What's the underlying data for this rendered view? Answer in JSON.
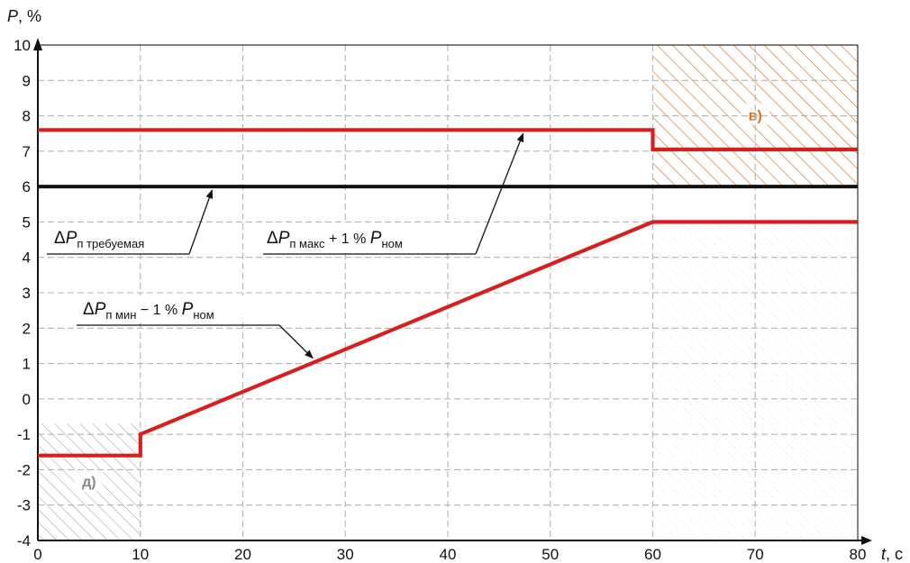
{
  "chart_data": {
    "type": "line",
    "title": "",
    "xlabel": "t, с",
    "ylabel": "P, %",
    "x_axis": {
      "min": 0,
      "max": 80,
      "ticks": [
        0,
        10,
        20,
        30,
        40,
        50,
        60,
        70,
        80
      ]
    },
    "y_axis": {
      "min": -4,
      "max": 10,
      "ticks": [
        -4,
        -3,
        -2,
        -1,
        0,
        1,
        2,
        3,
        4,
        5,
        6,
        7,
        8,
        9,
        10
      ]
    },
    "grid": true,
    "series": [
      {
        "name": "ΔPп требуемая",
        "color": "#111111",
        "points": [
          [
            0,
            6
          ],
          [
            80,
            6
          ]
        ]
      },
      {
        "name": "ΔPп макс + 1 % Pном",
        "color": "#d62020",
        "points": [
          [
            0,
            7.6
          ],
          [
            60,
            7.6
          ],
          [
            60,
            7.05
          ],
          [
            80,
            7.05
          ]
        ]
      },
      {
        "name": "ΔPп мин − 1 % Pном",
        "color": "#d62020",
        "points": [
          [
            0,
            -1.6
          ],
          [
            10,
            -1.6
          ],
          [
            10,
            -1
          ],
          [
            60,
            5
          ],
          [
            80,
            5
          ]
        ]
      }
    ],
    "regions": [
      {
        "label": "в)",
        "x": [
          60,
          80
        ],
        "y": [
          6,
          10
        ],
        "color": "#e07020",
        "style": "hatch"
      },
      {
        "label": "д)",
        "x": [
          0,
          10
        ],
        "y": [
          -4,
          -0.7
        ],
        "color": "#888888",
        "style": "hatch"
      },
      {
        "label": "",
        "x": [
          60,
          80
        ],
        "y": [
          -4,
          5
        ],
        "color": "#bbbbbb",
        "style": "speckle"
      }
    ],
    "annotations": {
      "required": {
        "main": "ΔP",
        "sub": "п требуемая",
        "target": [
          17,
          6
        ]
      },
      "max": {
        "main": "ΔP",
        "sub": "п макс",
        "mid": "+ 1 %",
        "p": "P",
        "psub": "ном",
        "target": [
          47,
          7.6
        ]
      },
      "min": {
        "main": "ΔP",
        "sub": "п мин",
        "mid": "− 1 %",
        "p": "P",
        "psub": "ном",
        "target": [
          27,
          1.05
        ]
      }
    }
  }
}
